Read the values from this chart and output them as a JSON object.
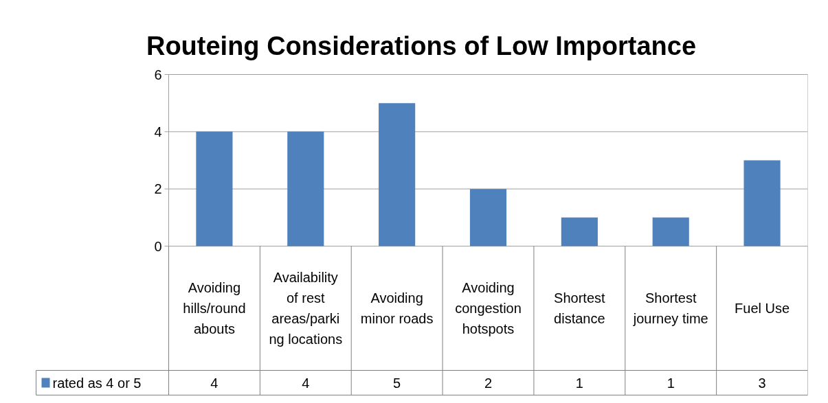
{
  "chart_data": {
    "type": "bar",
    "title": "Routeing Considerations of Low Importance",
    "categories": [
      "Avoiding hills/roundabouts",
      "Availability of rest areas/parking locations",
      "Avoiding minor roads",
      "Avoiding congestion hotspots",
      "Shortest distance",
      "Shortest journey time",
      "Fuel Use"
    ],
    "series": [
      {
        "name": "rated as 4 or 5",
        "color": "#4f81bd",
        "values": [
          4,
          4,
          5,
          2,
          1,
          1,
          3
        ]
      }
    ],
    "ylim": [
      0,
      6
    ],
    "yticks": [
      0,
      2,
      4,
      6
    ],
    "grid": "y",
    "legend": "bottom",
    "data_labels": true
  }
}
